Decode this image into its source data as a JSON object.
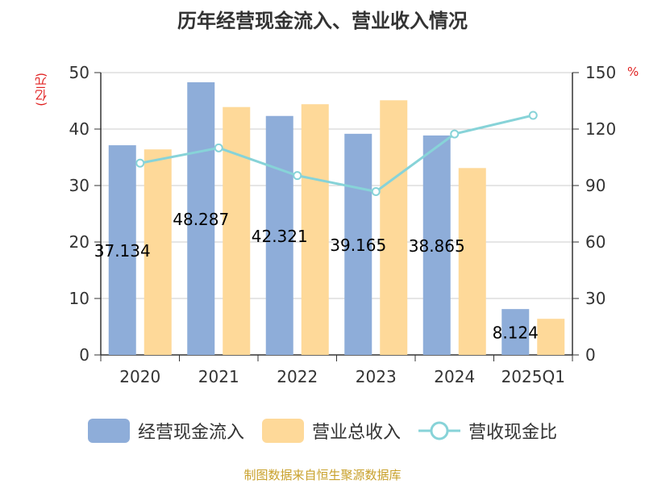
{
  "title": "历年经营现金流入、营业收入情况",
  "left_unit": "(亿元)",
  "right_unit": "%",
  "source": "制图数据来自恒生聚源数据库",
  "colors": {
    "cash_inflow": "#8eadd9",
    "revenue": "#fed999",
    "ratio": "#87d3d8",
    "unit": "#e02020"
  },
  "chart_data": {
    "type": "bar",
    "categories": [
      "2020",
      "2021",
      "2022",
      "2023",
      "2024",
      "2025Q1"
    ],
    "series": [
      {
        "name": "经营现金流入",
        "values": [
          37.134,
          48.287,
          42.321,
          39.165,
          38.865,
          8.124
        ],
        "labels": [
          "37.134",
          "48.287",
          "42.321",
          "39.165",
          "38.865",
          "8.124"
        ]
      },
      {
        "name": "营业总收入",
        "values": [
          36.4,
          43.9,
          44.4,
          45.1,
          33.1,
          6.4
        ]
      },
      {
        "name": "营收现金比",
        "type": "line",
        "axis": "right",
        "values": [
          101.9,
          110.0,
          95.3,
          86.8,
          117.4,
          127.3
        ]
      }
    ],
    "ylim": [
      0,
      50
    ],
    "yticks": [
      "0",
      "10",
      "20",
      "30",
      "40",
      "50"
    ],
    "y2lim": [
      0,
      150
    ],
    "y2ticks": [
      "0",
      "30",
      "60",
      "90",
      "120",
      "150"
    ],
    "grid": true,
    "legend_position": "bottom"
  }
}
